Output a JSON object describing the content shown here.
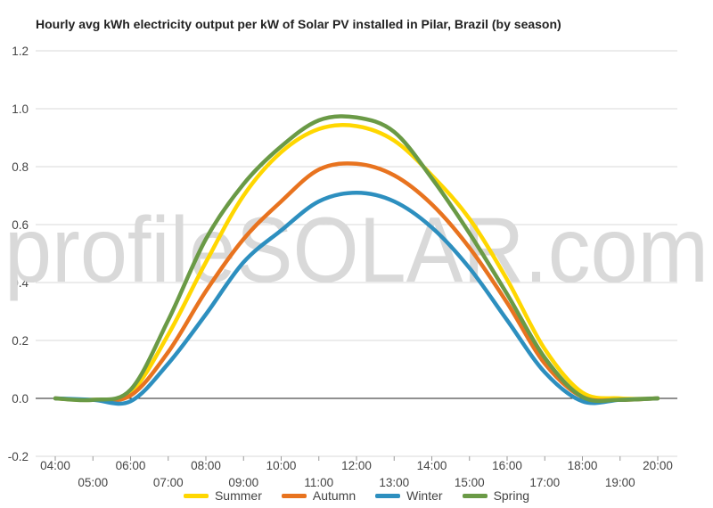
{
  "chart_data": {
    "type": "line",
    "title": "Hourly avg kWh electricity output per kW of Solar PV installed in Pilar, Brazil (by season)",
    "watermark": "profileSOLAR.com",
    "categories": [
      "04:00",
      "05:00",
      "06:00",
      "07:00",
      "08:00",
      "09:00",
      "10:00",
      "11:00",
      "12:00",
      "13:00",
      "14:00",
      "15:00",
      "16:00",
      "17:00",
      "18:00",
      "19:00",
      "20:00"
    ],
    "ylim": [
      -0.2,
      1.2
    ],
    "yticks": [
      "1.2",
      "1.0",
      "0.8",
      "0.6",
      "0.4",
      "0.2",
      "0.0",
      "-0.2"
    ],
    "grid": true,
    "legend_position": "bottom",
    "series": [
      {
        "name": "Summer",
        "color": "#FFD700",
        "values": [
          0,
          -0.005,
          0.02,
          0.22,
          0.47,
          0.7,
          0.85,
          0.93,
          0.94,
          0.89,
          0.77,
          0.62,
          0.41,
          0.17,
          0.02,
          0,
          0
        ]
      },
      {
        "name": "Autumn",
        "color": "#E8731F",
        "values": [
          0,
          -0.005,
          0.01,
          0.16,
          0.37,
          0.55,
          0.68,
          0.79,
          0.81,
          0.77,
          0.67,
          0.52,
          0.33,
          0.12,
          0.005,
          -0.005,
          0
        ]
      },
      {
        "name": "Winter",
        "color": "#2D8FBF",
        "values": [
          0,
          -0.005,
          -0.01,
          0.12,
          0.29,
          0.47,
          0.58,
          0.68,
          0.71,
          0.68,
          0.59,
          0.45,
          0.27,
          0.09,
          -0.01,
          -0.005,
          0
        ]
      },
      {
        "name": "Spring",
        "color": "#6A9A46",
        "values": [
          0,
          -0.005,
          0.03,
          0.27,
          0.55,
          0.74,
          0.87,
          0.96,
          0.97,
          0.92,
          0.76,
          0.57,
          0.36,
          0.14,
          0.005,
          -0.005,
          0
        ]
      }
    ]
  }
}
